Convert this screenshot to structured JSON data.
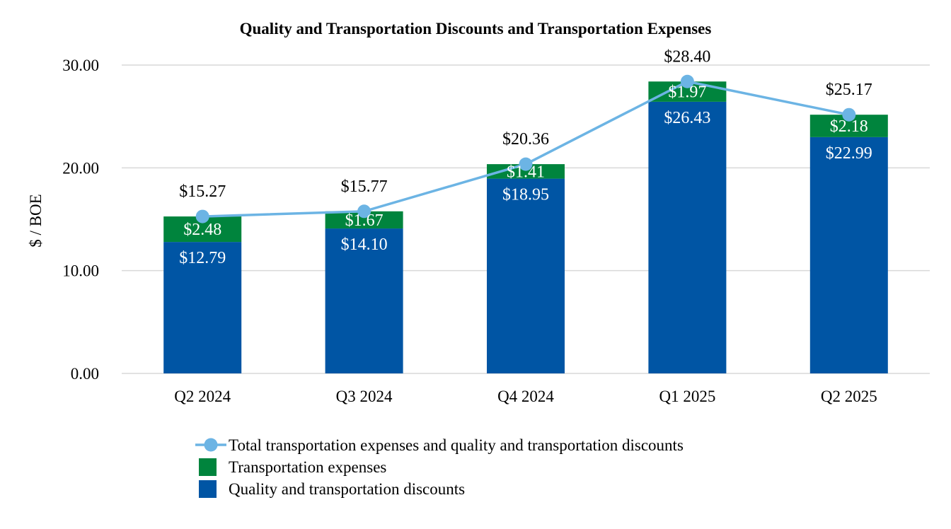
{
  "chart_data": {
    "type": "bar",
    "stacked": true,
    "title": "Quality and Transportation Discounts and Transportation Expenses",
    "xlabel": "",
    "ylabel": "$ / BOE",
    "ylim": [
      0,
      30
    ],
    "yticks": [
      "0.00",
      "10.00",
      "20.00",
      "30.00"
    ],
    "grid": true,
    "legend_position": "bottom",
    "categories": [
      "Q2 2024",
      "Q3 2024",
      "Q4 2024",
      "Q1 2025",
      "Q2 2025"
    ],
    "series": [
      {
        "name": "Quality and transportation discounts",
        "type": "bar",
        "color": "#0055A4",
        "values": [
          12.79,
          14.1,
          18.95,
          26.43,
          22.99
        ],
        "labels": [
          "$12.79",
          "$14.10",
          "$18.95",
          "$26.43",
          "$22.99"
        ]
      },
      {
        "name": "Transportation expenses",
        "type": "bar",
        "color": "#00843D",
        "values": [
          2.48,
          1.67,
          1.41,
          1.97,
          2.18
        ],
        "labels": [
          "$2.48",
          "$1.67",
          "$1.41",
          "$1.97",
          "$2.18"
        ]
      },
      {
        "name": "Total transportation expenses and quality and transportation discounts",
        "type": "line",
        "color": "#6CB4E4",
        "values": [
          15.27,
          15.77,
          20.36,
          28.4,
          25.17
        ],
        "labels": [
          "$15.27",
          "$15.77",
          "$20.36",
          "$28.40",
          "$25.17"
        ]
      }
    ]
  }
}
